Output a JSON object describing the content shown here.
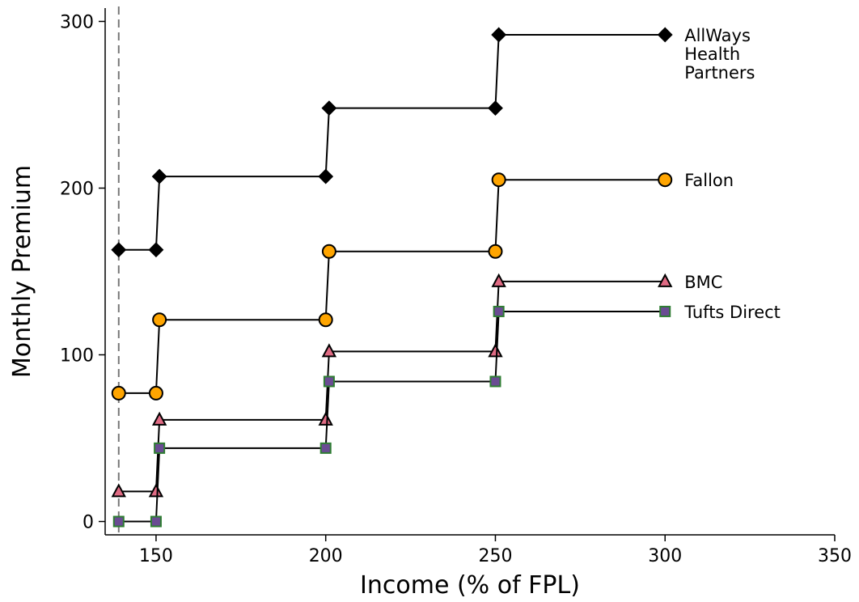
{
  "chart_data": {
    "type": "line",
    "xlabel": "Income (% of FPL)",
    "ylabel": "Monthly Premium",
    "xlim": [
      135,
      350
    ],
    "ylim": [
      -8,
      308
    ],
    "xticks": [
      150,
      200,
      250,
      300,
      350
    ],
    "yticks": [
      0,
      100,
      200,
      300
    ],
    "reference_line_x": 139,
    "series": [
      {
        "name": "AllWays Health Partners",
        "label_lines": [
          "AllWays",
          "Health",
          "Partners"
        ],
        "marker": "diamond",
        "color": "#000000",
        "edge": "#000000",
        "points": [
          [
            139,
            163
          ],
          [
            150,
            163
          ],
          [
            151,
            207
          ],
          [
            200,
            207
          ],
          [
            201,
            248
          ],
          [
            250,
            248
          ],
          [
            251,
            292
          ],
          [
            300,
            292
          ]
        ]
      },
      {
        "name": "Fallon",
        "label_lines": [
          "Fallon"
        ],
        "marker": "circle",
        "color": "#ffa500",
        "edge": "#000000",
        "points": [
          [
            139,
            77
          ],
          [
            150,
            77
          ],
          [
            151,
            121
          ],
          [
            200,
            121
          ],
          [
            201,
            162
          ],
          [
            250,
            162
          ],
          [
            251,
            205
          ],
          [
            300,
            205
          ]
        ]
      },
      {
        "name": "BMC",
        "label_lines": [
          "BMC"
        ],
        "marker": "triangle",
        "color": "#e06b84",
        "edge": "#000000",
        "points": [
          [
            139,
            18
          ],
          [
            150,
            18
          ],
          [
            151,
            61
          ],
          [
            200,
            61
          ],
          [
            201,
            102
          ],
          [
            250,
            102
          ],
          [
            251,
            144
          ],
          [
            300,
            144
          ]
        ]
      },
      {
        "name": "Tufts Direct",
        "label_lines": [
          "Tufts Direct"
        ],
        "marker": "square",
        "color": "#6a4c93",
        "edge": "#2e7d32",
        "points": [
          [
            139,
            0
          ],
          [
            150,
            0
          ],
          [
            151,
            44
          ],
          [
            200,
            44
          ],
          [
            201,
            84
          ],
          [
            250,
            84
          ],
          [
            251,
            126
          ],
          [
            300,
            126
          ]
        ]
      }
    ]
  }
}
